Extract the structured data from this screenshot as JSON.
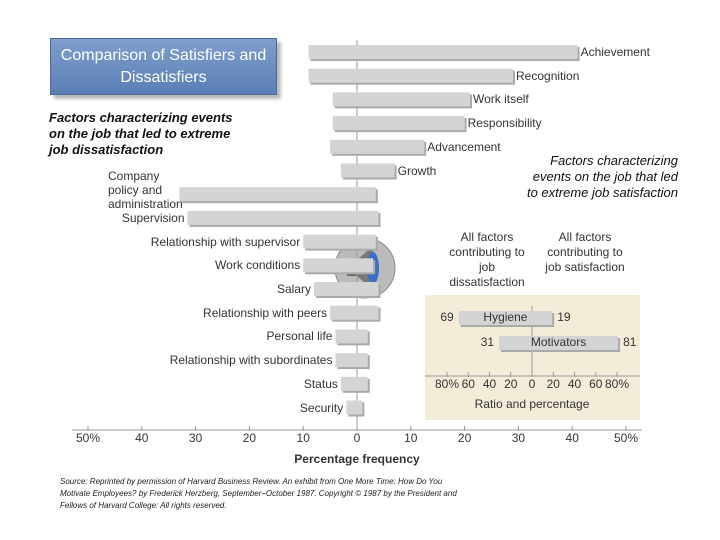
{
  "chart_data": [
    {
      "type": "diverging-bar",
      "title": "Comparison of Satisfiers and Dissatisfiers",
      "x_label": "Percentage frequency",
      "categories": [
        "Achievement",
        "Recognition",
        "Work itself",
        "Responsibility",
        "Advancement",
        "Growth",
        "Company policy and administration",
        "Supervision",
        "Relationship with supervisor",
        "Work conditions",
        "Salary",
        "Relationship with peers",
        "Personal life",
        "Relationship with subordinates",
        "Status",
        "Security"
      ],
      "series": [
        {
          "name": "Factors characterizing events on the job that led to extreme job dissatisfaction",
          "color": "#d4d4d4",
          "values": [
            9,
            9,
            4.5,
            4.5,
            5,
            3,
            33,
            31.5,
            10,
            10,
            8,
            5,
            4,
            4,
            3,
            2
          ]
        },
        {
          "name": "Factors characterizing events on the job that led to extreme job satisfaction",
          "color": "#d4d4d4",
          "values": [
            41,
            29,
            21,
            20,
            12.5,
            7,
            3.5,
            4,
            3.5,
            3,
            4,
            4,
            2,
            2,
            2,
            1
          ]
        }
      ],
      "xlim": [
        -50,
        50
      ],
      "xticks": [
        {
          "value": -50,
          "label": "50%"
        },
        {
          "value": -40,
          "label": "40"
        },
        {
          "value": -30,
          "label": "30"
        },
        {
          "value": -20,
          "label": "20"
        },
        {
          "value": -10,
          "label": "10"
        },
        0,
        10,
        20,
        30,
        40,
        {
          "value": 50,
          "label": "50%"
        }
      ]
    },
    {
      "type": "diverging-bar",
      "x_label": "Ratio and percentage",
      "categories": [
        "Hygiene",
        "Motivators"
      ],
      "series": [
        {
          "name": "All factors contributing to job dissatisfaction",
          "color": "#d4d4d4",
          "values": [
            69,
            31
          ]
        },
        {
          "name": "All factors contributing to job satisfaction",
          "color": "#d4d4d4",
          "values": [
            19,
            81
          ]
        }
      ],
      "xlim": [
        -80,
        80
      ],
      "xticks": [
        {
          "value": -80,
          "label": "80%"
        },
        {
          "value": -60,
          "label": "60"
        },
        {
          "value": -40,
          "label": "40"
        },
        {
          "value": -20,
          "label": "20"
        },
        0,
        20,
        40,
        60,
        {
          "value": 80,
          "label": "80%"
        }
      ]
    }
  ],
  "source": "Source: Reprinted by permission of Harvard Business Review. An exhibit from One More Time: How Do You Motivate Employees? by Frederick Herzberg, September–October 1987. Copyright © 1987 by the President and Fellows of Harvard College: All rights reserved."
}
